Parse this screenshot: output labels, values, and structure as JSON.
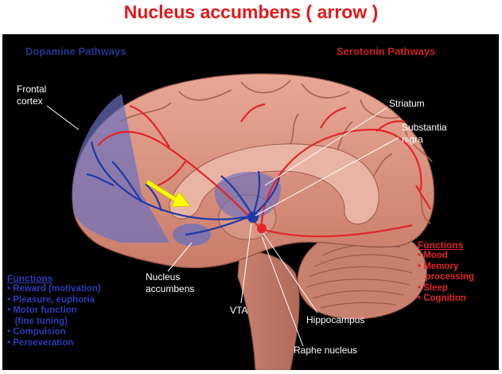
{
  "title": "Nucleus accumbens ( arrow )",
  "headers": {
    "dopamine": "Dopamine Pathways",
    "serotonin": "Serotonin Pathways"
  },
  "labels": {
    "frontal_cortex": "Frontal\ncortex",
    "striatum": "Striatum",
    "substantia_nigra": "Substantia\nnigra",
    "nucleus_accumbens": "Nucleus\naccumbens",
    "vta": "VTA",
    "hippocampus": "Hippocampus",
    "raphe_nucleus": "Raphe nucleus"
  },
  "dopamine_functions": {
    "title": "Functions",
    "items": [
      "• Reward (motivation)",
      "• Pleasure, euphoria",
      "• Motor function\n   (fine tuning)",
      "• Compulsion",
      "• Perseveration"
    ]
  },
  "serotonin_functions": {
    "title": "Functions",
    "items": [
      "• Mood",
      "• Memory\n   processing",
      "• Sleep",
      "• Cognition"
    ]
  },
  "colors": {
    "title": "#e0191b",
    "dopamine": "#2c3cb4",
    "serotonin": "#e0262a",
    "brain": "#d98f7d",
    "arrow": "#ffff00"
  }
}
